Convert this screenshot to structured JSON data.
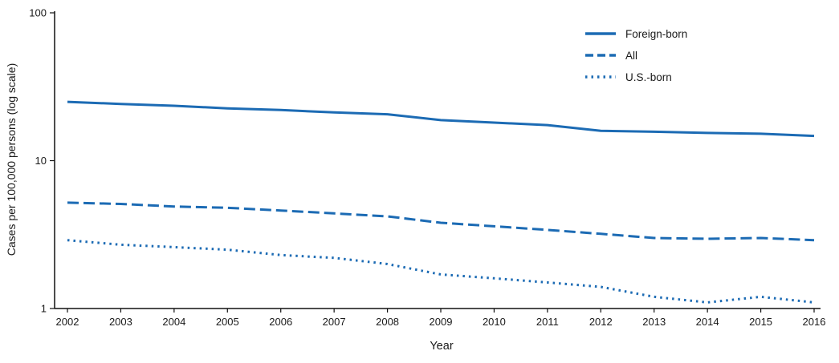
{
  "chart_data": {
    "type": "line",
    "x": [
      2002,
      2003,
      2004,
      2005,
      2006,
      2007,
      2008,
      2009,
      2010,
      2011,
      2012,
      2013,
      2014,
      2015,
      2016
    ],
    "series": [
      {
        "name": "Foreign-born",
        "style": "solid",
        "values": [
          25.0,
          24.2,
          23.5,
          22.6,
          22.0,
          21.2,
          20.6,
          18.8,
          18.1,
          17.4,
          15.9,
          15.7,
          15.4,
          15.2,
          14.7
        ]
      },
      {
        "name": "All",
        "style": "dashed",
        "values": [
          5.2,
          5.1,
          4.9,
          4.8,
          4.6,
          4.4,
          4.2,
          3.8,
          3.6,
          3.4,
          3.2,
          3.0,
          2.96,
          3.0,
          2.9
        ]
      },
      {
        "name": "U.S.-born",
        "style": "dotted",
        "values": [
          2.9,
          2.7,
          2.6,
          2.5,
          2.3,
          2.2,
          2.0,
          1.7,
          1.6,
          1.5,
          1.4,
          1.2,
          1.1,
          1.2,
          1.1
        ]
      }
    ],
    "xlabel": "Year",
    "ylabel": "Cases per 100,000 persons (log scale)",
    "yscale": "log",
    "ylim": [
      1,
      100
    ],
    "yticks": [
      1,
      10,
      100
    ],
    "legend_position": "top-right",
    "grid": false,
    "line_color": "#1c6bb4",
    "axis_color": "#111111"
  }
}
